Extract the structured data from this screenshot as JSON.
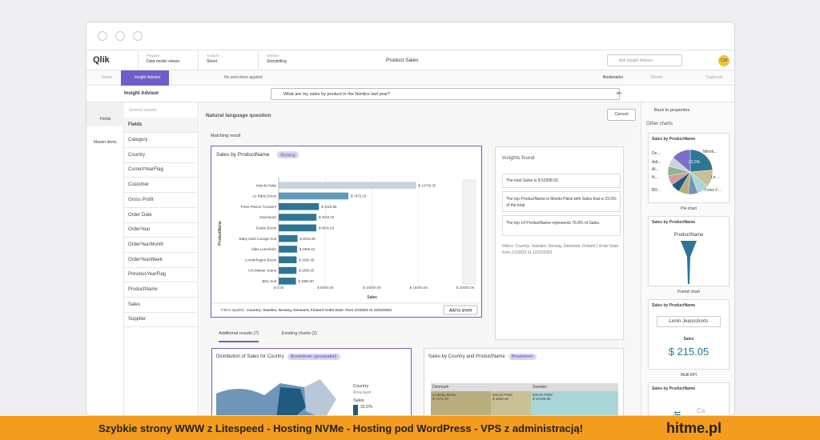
{
  "banner": {
    "text": "Szybkie strony WWW z Litespeed - Hosting  NVMe - Hosting pod WordPress - VPS z administracją!",
    "brand": "hitme.pl"
  },
  "header": {
    "logo": "Qlik",
    "tabs": [
      {
        "label": "Prepare",
        "sub": "Data model viewer"
      },
      {
        "label": "Analyze",
        "sub": "Sheet"
      },
      {
        "label": "Narrate",
        "sub": "Storytelling"
      }
    ],
    "app": "Product Sales",
    "search": "Ask Insight Advisor",
    "avatar": "CM"
  },
  "toolbar": {
    "notes": "Notes",
    "insight": "Insight Advisor",
    "selections": "No selections applied",
    "bookmarks": "Bookmarks",
    "sheets": "Sheets",
    "duplicate": "Duplicate"
  },
  "advisor": {
    "title": "Insight Advisor",
    "query": "What are my sales by product in the Nordics last year?",
    "lang": "en",
    "cancel": "Cancel",
    "back": "Back to properties"
  },
  "sidebar": {
    "tabs": [
      "Fields",
      "Master items"
    ],
    "search": "Search assets",
    "heading": "Fields",
    "fields": [
      "Category",
      "Country",
      "CurrentYearFlag",
      "Customer",
      "Gross Profit",
      "Order Date",
      "OrderYear",
      "OrderYearMonth",
      "OrderYearWeek",
      "PreviousYearFlag",
      "ProductName",
      "Sales",
      "Supplier"
    ]
  },
  "main": {
    "nlq": "Natural language question",
    "matching": "Matching result",
    "result_tabs": [
      "Additional results (7)",
      "Existing charts (2)"
    ]
  },
  "chart_data": {
    "type": "bar",
    "orientation": "horizontal",
    "title": "Sales by ProductName",
    "badge": "Ranking",
    "x_label": "Sales",
    "y_label": "ProductName",
    "categories": [
      "Minnki Pälsii",
      "Le Baby Dress",
      "Feiss Fleece Trousers",
      "Daveriport",
      "Snake Boots",
      "Baby Dark Lounge Suit",
      "Alles Luscskofo",
      "Lunderhagen Boots",
      "US-Master Jeans",
      "BDL Suit"
    ],
    "values": [
      14733.3,
      7472.16,
      4316.88,
      4043.2,
      4031.63,
      2016.69,
      1968.43,
      1920.3,
      1905.55,
      1850
    ],
    "value_labels": [
      "$ 14733.30",
      "$ 7472.16",
      "$ 4316.88",
      "$ 4043.20",
      "$ 4031.63",
      "$ 2016.69",
      "$ 1968.43",
      "$ 1920.30",
      "$ 1905.55",
      "$ 1850.00"
    ],
    "colors": [
      "#c9d3df",
      "#5f9bb6",
      "#2d7694",
      "#2d7694",
      "#2d7694",
      "#2d7694",
      "#2d7694",
      "#2d7694",
      "#2d7694",
      "#2d7694"
    ],
    "xlim": [
      0,
      20000
    ],
    "xticks": [
      {
        "value": 0,
        "label": "$ 0.00"
      },
      {
        "value": 5000,
        "label": "$ 5000.00"
      },
      {
        "value": 10000,
        "label": "$ 10000.00"
      },
      {
        "value": 15000,
        "label": "$ 15000.00"
      },
      {
        "value": 20000,
        "label": "$ 20000.00"
      }
    ],
    "grid": true,
    "filters_label": "Filters applied:",
    "filters": "Country: Sweden, Norway, Denmark, Finland Order Date: from 1/1/2021 to 12/31/2021",
    "add": "Add to sheet"
  },
  "insights": {
    "title": "Insights found",
    "items": [
      "The total Sales is $ 62598.50.",
      "The top ProductName is Minnki Pälsii with Sales that is 23.5% of the total.",
      "The top 14 ProductName represents 76.8% of Sales."
    ],
    "filters": "Filters: Country: Sweden, Norway, Denmark, Finland | Order Date: from 1/1/2021 to 12/31/2021"
  },
  "other_charts": {
    "title": "Other charts",
    "cards": [
      {
        "title": "Sales by ProductName",
        "caption": "Pie chart",
        "labels": [
          "De...",
          "Adi...",
          "Al...",
          "Ik...",
          "BD...",
          "Minnk...",
          "Le ...",
          "Feiss F...",
          "23.5%"
        ]
      },
      {
        "title": "Sales by ProductName",
        "caption": "Funnel chart",
        "labels": [
          "ProductName"
        ]
      },
      {
        "title": "Sales by ProductName",
        "caption": "Multi KPI",
        "labels": [
          "Lenin Jeansshorts",
          "Sales",
          "$ 215.05"
        ]
      },
      {
        "title": "Sales by ProductName",
        "caption": "",
        "labels": [
          "Suit",
          "Ca"
        ]
      }
    ]
  },
  "bottom": {
    "map": {
      "title": "Distribution of Sales for Country",
      "badge": "Breakdown (geospatial)",
      "legend": [
        "Country",
        "Area layer",
        "Sales",
        "33.07k"
      ]
    },
    "treemap": {
      "title": "Sales by Country and ProductName",
      "badge": "Breakdown",
      "cells": [
        "Denmark",
        "Sweden",
        "Le Baby Dress",
        "$ 7472.16",
        "Minnki Pälsii",
        "$ 4552.46",
        "Minnki Pälsii",
        "$ 10180.80"
      ]
    }
  }
}
